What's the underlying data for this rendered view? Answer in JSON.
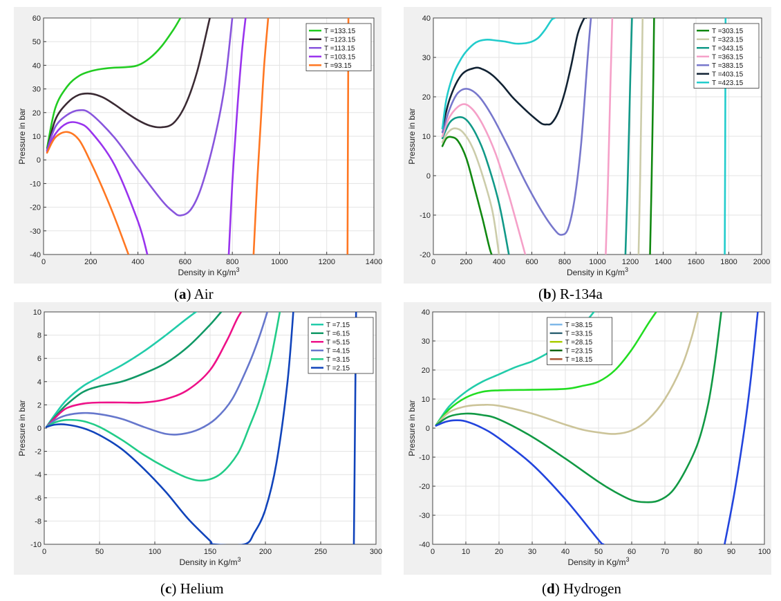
{
  "figure": {
    "captions": [
      {
        "letter": "a",
        "open": "(",
        "close": ")",
        "name": "Air"
      },
      {
        "letter": "b",
        "open": "(",
        "close": ")",
        "name": "R-134a"
      },
      {
        "letter": "c",
        "open": "(",
        "close": ")",
        "name": "Helium"
      },
      {
        "letter": "d",
        "open": "(",
        "close": ")",
        "name": "Hydrogen"
      }
    ]
  },
  "chart_data": [
    {
      "type": "line",
      "name": "Air",
      "xlabel_main": "Density in Kg/m",
      "xlabel_sup": "3",
      "ylabel": "Pressure in bar",
      "xlim": [
        0,
        1400
      ],
      "ylim": [
        -40,
        60
      ],
      "xticks": [
        "0",
        "200",
        "400",
        "600",
        "800",
        "1000",
        "1200",
        "1400"
      ],
      "yticks": [
        "-40",
        "-30",
        "-20",
        "-10",
        "0",
        "10",
        "20",
        "30",
        "40",
        "50",
        "60"
      ],
      "grid": true,
      "legend_position": "top-right",
      "series": [
        {
          "name": "T =133.15",
          "color": "#22cc22",
          "x": [
            15,
            50,
            100,
            150,
            200,
            250,
            300,
            350,
            400,
            450,
            500,
            550,
            580
          ],
          "y": [
            5,
            22,
            31,
            35.5,
            37.5,
            38.5,
            39,
            39.2,
            40,
            43,
            48,
            55,
            60
          ]
        },
        {
          "name": "T =123.15",
          "color": "#3a2a33",
          "x": [
            15,
            50,
            100,
            150,
            200,
            250,
            300,
            350,
            400,
            450,
            500,
            550,
            600,
            650,
            700,
            705
          ],
          "y": [
            4,
            17,
            24,
            27.5,
            28,
            26.5,
            23.5,
            20,
            16.8,
            14.5,
            13.8,
            15.5,
            23,
            37,
            58,
            60
          ]
        },
        {
          "name": "T =113.15",
          "color": "#8855dd",
          "x": [
            15,
            50,
            100,
            150,
            200,
            300,
            400,
            500,
            550,
            580,
            620,
            660,
            700,
            740,
            770,
            800
          ],
          "y": [
            4,
            14,
            19,
            21,
            19.5,
            9.5,
            -4,
            -17,
            -22,
            -23.5,
            -21.5,
            -14,
            -1,
            16,
            33,
            60
          ]
        },
        {
          "name": "T =103.15",
          "color": "#9933ee",
          "x": [
            15,
            50,
            100,
            150,
            200,
            300,
            400,
            440,
            785,
            800,
            820,
            840,
            856
          ],
          "y": [
            3.5,
            11,
            15.5,
            15.5,
            12,
            -2,
            -26,
            -40,
            -40,
            -10,
            20,
            45,
            60
          ]
        },
        {
          "name": "T =93.15",
          "color": "#ff7722",
          "x": [
            15,
            50,
            100,
            150,
            200,
            250,
            300,
            360,
            890,
            905,
            920,
            935,
            952,
            1288,
            1290,
            1292
          ],
          "y": [
            3,
            9.5,
            11.8,
            8.5,
            -1,
            -12,
            -24,
            -40,
            -40,
            -10,
            15,
            40,
            60,
            -40,
            10,
            60
          ]
        }
      ]
    },
    {
      "type": "line",
      "name": "R-134a",
      "xlabel_main": "Density in Kg/m",
      "xlabel_sup": "3",
      "ylabel": "Pressure in bar",
      "xlim": [
        0,
        2000
      ],
      "ylim": [
        -20,
        40
      ],
      "xticks": [
        "0",
        "200",
        "400",
        "600",
        "800",
        "1000",
        "1200",
        "1400",
        "1600",
        "1800",
        "2000"
      ],
      "yticks": [
        "-20",
        "-10",
        "0",
        "10",
        "20",
        "30",
        "40"
      ],
      "grid": true,
      "legend_position": "top-right",
      "series": [
        {
          "name": "T =303.15",
          "color": "#118811",
          "x": [
            55,
            80,
            110,
            150,
            200,
            250,
            300,
            340,
            355,
            1320,
            1330,
            1340,
            1345
          ],
          "y": [
            7.5,
            9.5,
            9.8,
            8.8,
            4.5,
            -3,
            -11,
            -18,
            -20,
            -20,
            0,
            25,
            40
          ]
        },
        {
          "name": "T =323.15",
          "color": "#ccccaa",
          "x": [
            55,
            90,
            130,
            180,
            240,
            300,
            360,
            400,
            1250,
            1260,
            1270,
            1275
          ],
          "y": [
            8.5,
            11,
            12,
            11,
            7,
            0,
            -9,
            -20,
            -20,
            0,
            25,
            40
          ]
        },
        {
          "name": "T =343.15",
          "color": "#119988",
          "x": [
            55,
            100,
            150,
            200,
            260,
            320,
            400,
            460,
            1170,
            1185,
            1200,
            1210
          ],
          "y": [
            9.5,
            13.5,
            14.8,
            14.2,
            10.5,
            4.5,
            -7,
            -20,
            -20,
            0,
            25,
            40
          ]
        },
        {
          "name": "T =363.15",
          "color": "#f5a0c8",
          "x": [
            55,
            100,
            170,
            230,
            300,
            380,
            460,
            560,
            1050,
            1065,
            1080,
            1090
          ],
          "y": [
            10,
            15,
            18,
            17.2,
            13,
            5.5,
            -5,
            -20,
            -20,
            0,
            25,
            40
          ]
        },
        {
          "name": "T =383.15",
          "color": "#7777cc",
          "x": [
            55,
            100,
            150,
            210,
            280,
            360,
            460,
            560,
            660,
            740,
            780,
            820,
            860,
            900,
            940,
            960
          ],
          "y": [
            11,
            17,
            21,
            22,
            20,
            15,
            7,
            -1.5,
            -9,
            -13.8,
            -15,
            -13.5,
            -6,
            8,
            30,
            40
          ]
        },
        {
          "name": "T =403.15",
          "color": "#112233",
          "x": [
            55,
            100,
            170,
            250,
            300,
            360,
            420,
            480,
            540,
            600,
            660,
            690,
            720,
            760,
            800,
            840,
            880,
            920,
            930
          ],
          "y": [
            12,
            19.5,
            25.5,
            27.3,
            27,
            25.5,
            23,
            20,
            17.5,
            15.2,
            13.2,
            13,
            13.3,
            16,
            21,
            28,
            36,
            40,
            40
          ]
        },
        {
          "name": "T =423.15",
          "color": "#22cccc",
          "x": [
            55,
            80,
            120,
            160,
            200,
            260,
            320,
            380,
            440,
            500,
            560,
            600,
            640,
            680,
            720,
            740,
            1775,
            1778,
            1780
          ],
          "y": [
            12,
            19.5,
            25.5,
            29,
            31.5,
            33.8,
            34.5,
            34.3,
            34,
            33.5,
            33.6,
            34,
            35,
            37,
            39.5,
            40,
            -20,
            10,
            40
          ]
        }
      ]
    },
    {
      "type": "line",
      "name": "Helium",
      "xlabel_main": "Density in Kg/m",
      "xlabel_sup": "3",
      "ylabel": "Pressure in bar",
      "xlim": [
        0,
        300
      ],
      "ylim": [
        -10,
        10
      ],
      "xticks": [
        "0",
        "50",
        "100",
        "150",
        "200",
        "250",
        "300"
      ],
      "yticks": [
        "-10",
        "-8",
        "-6",
        "-4",
        "-2",
        "0",
        "2",
        "4",
        "6",
        "8",
        "10"
      ],
      "grid": true,
      "legend_position": "top-right",
      "series": [
        {
          "name": "T =7.15",
          "color": "#22ccaa",
          "x": [
            2,
            10,
            20,
            35,
            50,
            70,
            90,
            110,
            130,
            145,
            155
          ],
          "y": [
            0.1,
            1.2,
            2.4,
            3.6,
            4.4,
            5.4,
            6.6,
            8,
            9.5,
            10.5,
            11
          ]
        },
        {
          "name": "T =6.15",
          "color": "#119966",
          "x": [
            2,
            10,
            20,
            35,
            50,
            70,
            90,
            110,
            130,
            150,
            165,
            175
          ],
          "y": [
            0.1,
            1,
            2,
            3.1,
            3.6,
            4,
            4.7,
            5.6,
            7,
            8.9,
            10.5,
            11
          ]
        },
        {
          "name": "T =5.15",
          "color": "#ee1188",
          "x": [
            2,
            10,
            20,
            35,
            50,
            70,
            90,
            110,
            130,
            150,
            165,
            175,
            185
          ],
          "y": [
            0.1,
            0.9,
            1.7,
            2.1,
            2.2,
            2.2,
            2.2,
            2.5,
            3.3,
            5,
            7.5,
            9.5,
            11
          ]
        },
        {
          "name": "T =4.15",
          "color": "#6677cc",
          "x": [
            2,
            10,
            20,
            35,
            50,
            70,
            90,
            110,
            125,
            140,
            155,
            170,
            185,
            195,
            205
          ],
          "y": [
            0.1,
            0.7,
            1.1,
            1.3,
            1.2,
            0.8,
            0.1,
            -0.5,
            -0.5,
            -0.1,
            0.8,
            2.5,
            5.5,
            8,
            11
          ]
        },
        {
          "name": "T =3.15",
          "color": "#22cc88",
          "x": [
            2,
            10,
            20,
            35,
            50,
            70,
            90,
            110,
            130,
            145,
            160,
            175,
            185,
            195,
            205,
            215
          ],
          "y": [
            0.1,
            0.5,
            0.7,
            0.6,
            0.1,
            -1,
            -2.3,
            -3.4,
            -4.3,
            -4.5,
            -3.9,
            -2.2,
            0,
            2.5,
            6,
            11
          ]
        },
        {
          "name": "T =2.15",
          "color": "#1144bb",
          "x": [
            2,
            10,
            20,
            35,
            50,
            70,
            90,
            110,
            130,
            150,
            153,
            181,
            190,
            200,
            210,
            220,
            226,
            280,
            281,
            282
          ],
          "y": [
            0.1,
            0.3,
            0.3,
            0,
            -0.6,
            -1.8,
            -3.5,
            -5.5,
            -7.8,
            -9.7,
            -10,
            -10,
            -9,
            -7,
            -3,
            4,
            11,
            -10,
            0,
            10
          ]
        }
      ]
    },
    {
      "type": "line",
      "name": "Hydrogen",
      "xlabel_main": "Density in Kg/m",
      "xlabel_sup": "3",
      "ylabel": "Pressure in bar",
      "xlim": [
        0,
        100
      ],
      "ylim": [
        -40,
        40
      ],
      "xticks": [
        "0",
        "10",
        "20",
        "30",
        "40",
        "50",
        "60",
        "70",
        "80",
        "90",
        "100"
      ],
      "yticks": [
        "-40",
        "-30",
        "-20",
        "-10",
        "0",
        "10",
        "20",
        "30",
        "40"
      ],
      "grid": true,
      "legend_position": "top-left-inset",
      "series": [
        {
          "name": "T =38.15",
          "color": "#22ccaa",
          "legend_color": "#7fb8e8",
          "x": [
            1,
            5,
            10,
            15,
            20,
            25,
            30,
            35,
            40,
            45,
            50,
            53
          ],
          "y": [
            1,
            7.5,
            12.5,
            16,
            18.5,
            21,
            23,
            26,
            29.5,
            35,
            42,
            46
          ]
        },
        {
          "name": "T =33.15",
          "color": "#22dd22",
          "legend_color": "#336677",
          "x": [
            1,
            5,
            10,
            15,
            20,
            30,
            40,
            45,
            50,
            55,
            60,
            65,
            68,
            71
          ],
          "y": [
            1,
            6.5,
            10.5,
            12.5,
            13,
            13.2,
            13.5,
            14.5,
            16,
            20,
            27,
            36,
            41,
            46
          ]
        },
        {
          "name": "T =28.15",
          "color": "#ccc499",
          "legend_color": "#aacc00",
          "x": [
            1,
            5,
            10,
            15,
            20,
            30,
            40,
            45,
            50,
            55,
            60,
            65,
            70,
            75,
            78,
            80
          ],
          "y": [
            1,
            5.5,
            7.5,
            8,
            7.7,
            5,
            1.2,
            -0.5,
            -1.5,
            -2,
            -0.8,
            3,
            10,
            21,
            31,
            40
          ]
        },
        {
          "name": "T =23.15",
          "color": "#119944",
          "legend_color": "#116611",
          "x": [
            1,
            5,
            10,
            15,
            20,
            30,
            40,
            50,
            55,
            60,
            64,
            68,
            72,
            76,
            80,
            83,
            85,
            87
          ],
          "y": [
            1,
            4,
            5,
            4.5,
            3,
            -3,
            -10.5,
            -18.5,
            -22,
            -24.8,
            -25.5,
            -25,
            -22,
            -15,
            -5,
            8,
            22,
            40
          ]
        },
        {
          "name": "T =18.15",
          "color": "#2244dd",
          "legend_color": "#aa5533",
          "x": [
            1,
            4,
            7,
            10,
            15,
            20,
            30,
            40,
            50,
            51.5,
            88,
            91,
            94,
            96,
            98
          ],
          "y": [
            0.8,
            2.2,
            2.7,
            2.3,
            0,
            -3.5,
            -12.5,
            -24.5,
            -38.5,
            -40,
            -40,
            -22,
            0,
            18,
            40
          ]
        }
      ]
    }
  ]
}
